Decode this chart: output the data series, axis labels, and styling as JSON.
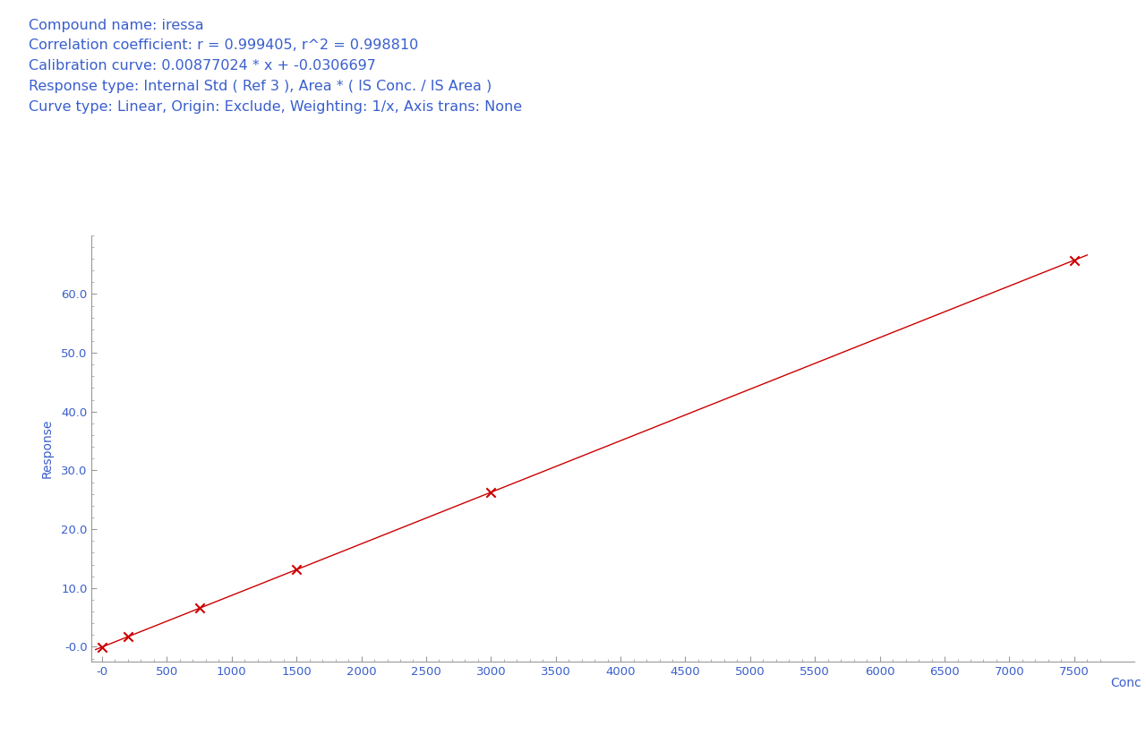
{
  "title_lines": [
    "Compound name: iressa",
    "Correlation coefficient: r = 0.999405, r^2 = 0.998810",
    "Calibration curve: 0.00877024 * x + -0.0306697",
    "Response type: Internal Std ( Ref 3 ), Area * ( IS Conc. / IS Area )",
    "Curve type: Linear, Origin: Exclude, Weighting: 1/x, Axis trans: None"
  ],
  "slope": 0.00877024,
  "intercept": -0.0306697,
  "data_points_x": [
    0,
    200,
    750,
    1500,
    3000,
    7500
  ],
  "data_points_y": [
    -0.03,
    1.72,
    6.55,
    13.12,
    26.28,
    65.74
  ],
  "x_label": "Conc",
  "y_label": "Response",
  "x_min": -80,
  "x_max": 7700,
  "y_min": -2.5,
  "y_max": 70,
  "x_ticks": [
    0,
    500,
    1000,
    1500,
    2000,
    2500,
    3000,
    3500,
    4000,
    4500,
    5000,
    5500,
    6000,
    6500,
    7000,
    7500
  ],
  "x_tick_labels": [
    "-0",
    "500",
    "1000",
    "1500",
    "2000",
    "2500",
    "3000",
    "3500",
    "4000",
    "4500",
    "5000",
    "5500",
    "6000",
    "6500",
    "7000",
    "7500"
  ],
  "y_ticks": [
    0.0,
    10.0,
    20.0,
    30.0,
    40.0,
    50.0,
    60.0
  ],
  "y_tick_labels": [
    "-0.0",
    "10.0",
    "20.0",
    "30.0",
    "40.0",
    "50.0",
    "60.0"
  ],
  "line_color": "#cc0000",
  "marker_color": "#cc0000",
  "text_color": "#3a5fcd",
  "axis_color": "#999999",
  "background_color": "#ffffff",
  "title_fontsize": 11.5,
  "axis_label_fontsize": 10,
  "tick_fontsize": 9.5
}
